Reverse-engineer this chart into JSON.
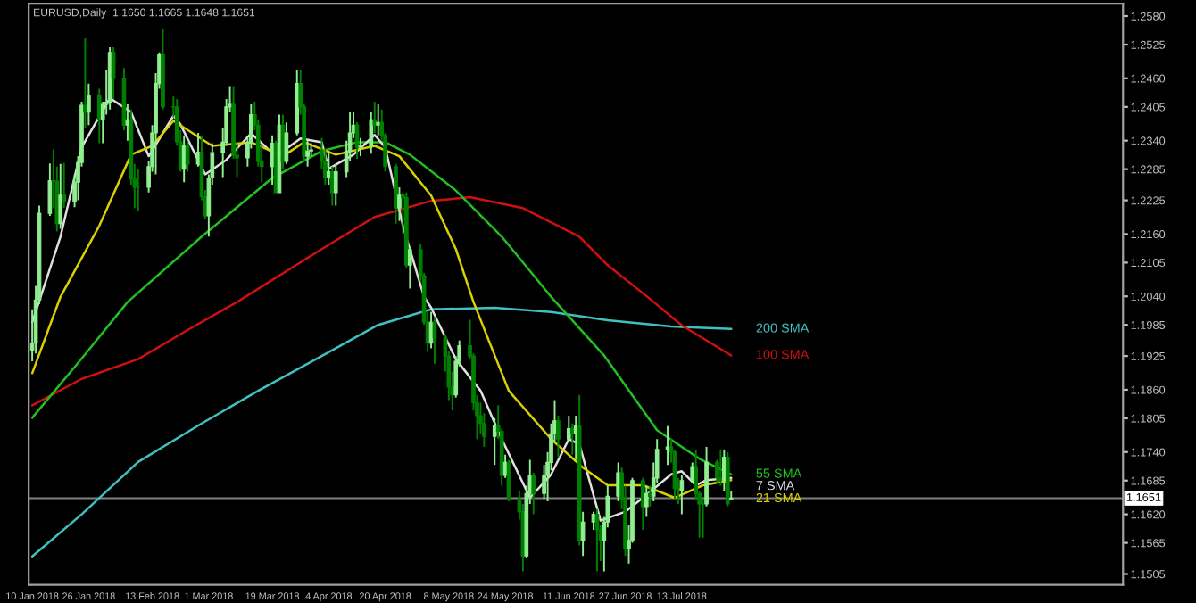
{
  "chart_data": {
    "type": "candlestick",
    "title": "EURUSD,Daily  1.1650 1.1665 1.1648 1.1651",
    "x": [
      "2018-01-10",
      "2018-01-11",
      "2018-01-12",
      "2018-01-15",
      "2018-01-16",
      "2018-01-17",
      "2018-01-18",
      "2018-01-19",
      "2018-01-22",
      "2018-01-23",
      "2018-01-24",
      "2018-01-25",
      "2018-01-26",
      "2018-01-29",
      "2018-01-30",
      "2018-01-31",
      "2018-02-01",
      "2018-02-02",
      "2018-02-05",
      "2018-02-06",
      "2018-02-07",
      "2018-02-08",
      "2018-02-09",
      "2018-02-12",
      "2018-02-13",
      "2018-02-14",
      "2018-02-15",
      "2018-02-16",
      "2018-02-19",
      "2018-02-20",
      "2018-02-21",
      "2018-02-22",
      "2018-02-23",
      "2018-02-26",
      "2018-02-27",
      "2018-02-28",
      "2018-03-01",
      "2018-03-02",
      "2018-03-05",
      "2018-03-06",
      "2018-03-07",
      "2018-03-08",
      "2018-03-09",
      "2018-03-12",
      "2018-03-13",
      "2018-03-14",
      "2018-03-15",
      "2018-03-16",
      "2018-03-19",
      "2018-03-20",
      "2018-03-21",
      "2018-03-22",
      "2018-03-23",
      "2018-03-26",
      "2018-03-27",
      "2018-03-28",
      "2018-03-29",
      "2018-03-30",
      "2018-04-02",
      "2018-04-03",
      "2018-04-04",
      "2018-04-05",
      "2018-04-06",
      "2018-04-09",
      "2018-04-10",
      "2018-04-11",
      "2018-04-12",
      "2018-04-13",
      "2018-04-16",
      "2018-04-17",
      "2018-04-18",
      "2018-04-19",
      "2018-04-20",
      "2018-04-23",
      "2018-04-24",
      "2018-04-25",
      "2018-04-26",
      "2018-04-27",
      "2018-04-30",
      "2018-05-01",
      "2018-05-02",
      "2018-05-03",
      "2018-05-04",
      "2018-05-07",
      "2018-05-08",
      "2018-05-09",
      "2018-05-10",
      "2018-05-11",
      "2018-05-14",
      "2018-05-15",
      "2018-05-16",
      "2018-05-17",
      "2018-05-18",
      "2018-05-21",
      "2018-05-22",
      "2018-05-23",
      "2018-05-24",
      "2018-05-25",
      "2018-05-28",
      "2018-05-29",
      "2018-05-30",
      "2018-05-31",
      "2018-06-01",
      "2018-06-04",
      "2018-06-05",
      "2018-06-06",
      "2018-06-07",
      "2018-06-08",
      "2018-06-11",
      "2018-06-12",
      "2018-06-13",
      "2018-06-14",
      "2018-06-15",
      "2018-06-18",
      "2018-06-19",
      "2018-06-20",
      "2018-06-21",
      "2018-06-22",
      "2018-06-25",
      "2018-06-26",
      "2018-06-27",
      "2018-06-28",
      "2018-06-29",
      "2018-07-02",
      "2018-07-03",
      "2018-07-04",
      "2018-07-05",
      "2018-07-06",
      "2018-07-09",
      "2018-07-10",
      "2018-07-11",
      "2018-07-12",
      "2018-07-13",
      "2018-07-16",
      "2018-07-17",
      "2018-07-18",
      "2018-07-19",
      "2018-07-20",
      "2018-07-23",
      "2018-07-24",
      "2018-07-25",
      "2018-07-26",
      "2018-07-27"
    ],
    "ohlc": [
      [
        1.1935,
        1.2015,
        1.1915,
        1.195
      ],
      [
        1.195,
        1.206,
        1.193,
        1.2033
      ],
      [
        1.2033,
        1.2215,
        1.2025,
        1.22
      ],
      [
        1.22,
        1.2296,
        1.2195,
        1.2263
      ],
      [
        1.2263,
        1.2323,
        1.221,
        1.2262
      ],
      [
        1.2262,
        1.229,
        1.2165,
        1.218
      ],
      [
        1.218,
        1.2295,
        1.217,
        1.2235
      ],
      [
        1.2235,
        1.2297,
        1.221,
        1.2222
      ],
      [
        1.2222,
        1.2275,
        1.2212,
        1.226
      ],
      [
        1.226,
        1.231,
        1.2225,
        1.2298
      ],
      [
        1.2298,
        1.2415,
        1.229,
        1.2408
      ],
      [
        1.2408,
        1.2537,
        1.2365,
        1.2395
      ],
      [
        1.2395,
        1.245,
        1.237,
        1.2427
      ],
      [
        1.2427,
        1.244,
        1.2335,
        1.238
      ],
      [
        1.238,
        1.2415,
        1.2335,
        1.241
      ],
      [
        1.241,
        1.2475,
        1.239,
        1.2414
      ],
      [
        1.2414,
        1.252,
        1.24,
        1.251
      ],
      [
        1.251,
        1.252,
        1.242,
        1.246
      ],
      [
        1.246,
        1.248,
        1.236,
        1.237
      ],
      [
        1.237,
        1.241,
        1.234,
        1.238
      ],
      [
        1.238,
        1.24,
        1.2255,
        1.2266
      ],
      [
        1.2266,
        1.2295,
        1.221,
        1.225
      ],
      [
        1.225,
        1.2285,
        1.2205,
        1.225
      ],
      [
        1.225,
        1.23,
        1.224,
        1.229
      ],
      [
        1.229,
        1.237,
        1.228,
        1.2355
      ],
      [
        1.2355,
        1.247,
        1.2275,
        1.245
      ],
      [
        1.245,
        1.251,
        1.244,
        1.2505
      ],
      [
        1.2505,
        1.2555,
        1.24,
        1.2405
      ],
      [
        1.2405,
        1.2425,
        1.2385,
        1.2405
      ],
      [
        1.2405,
        1.242,
        1.233,
        1.2338
      ],
      [
        1.2338,
        1.236,
        1.228,
        1.2285
      ],
      [
        1.2285,
        1.235,
        1.226,
        1.233
      ],
      [
        1.233,
        1.234,
        1.228,
        1.2295
      ],
      [
        1.2295,
        1.2355,
        1.229,
        1.2318
      ],
      [
        1.2318,
        1.235,
        1.2225,
        1.2232
      ],
      [
        1.2232,
        1.2245,
        1.219,
        1.2195
      ],
      [
        1.2195,
        1.2275,
        1.2155,
        1.2268
      ],
      [
        1.2268,
        1.2335,
        1.2255,
        1.2317
      ],
      [
        1.2317,
        1.2365,
        1.227,
        1.2337
      ],
      [
        1.2337,
        1.242,
        1.233,
        1.2405
      ],
      [
        1.2405,
        1.2445,
        1.2395,
        1.241
      ],
      [
        1.241,
        1.2445,
        1.2305,
        1.2312
      ],
      [
        1.2312,
        1.2335,
        1.227,
        1.2307
      ],
      [
        1.2307,
        1.2345,
        1.229,
        1.2336
      ],
      [
        1.2336,
        1.241,
        1.2325,
        1.239
      ],
      [
        1.239,
        1.2415,
        1.236,
        1.237
      ],
      [
        1.237,
        1.238,
        1.229,
        1.23
      ],
      [
        1.23,
        1.233,
        1.226,
        1.229
      ],
      [
        1.229,
        1.235,
        1.2255,
        1.2335
      ],
      [
        1.2335,
        1.234,
        1.224,
        1.224
      ],
      [
        1.224,
        1.239,
        1.224,
        1.237
      ],
      [
        1.237,
        1.239,
        1.2285,
        1.23
      ],
      [
        1.23,
        1.2375,
        1.2295,
        1.2355
      ],
      [
        1.2355,
        1.2475,
        1.235,
        1.245
      ],
      [
        1.245,
        1.2475,
        1.239,
        1.2405
      ],
      [
        1.2405,
        1.241,
        1.23,
        1.231
      ],
      [
        1.231,
        1.234,
        1.229,
        1.232
      ],
      [
        1.232,
        1.2335,
        1.231,
        1.2322
      ],
      [
        1.2322,
        1.2345,
        1.2285,
        1.23
      ],
      [
        1.23,
        1.2325,
        1.2255,
        1.227
      ],
      [
        1.227,
        1.232,
        1.2255,
        1.228
      ],
      [
        1.228,
        1.229,
        1.2215,
        1.224
      ],
      [
        1.224,
        1.2295,
        1.2215,
        1.228
      ],
      [
        1.228,
        1.234,
        1.227,
        1.232
      ],
      [
        1.232,
        1.2395,
        1.23,
        1.2355
      ],
      [
        1.2355,
        1.2395,
        1.2345,
        1.237
      ],
      [
        1.237,
        1.2375,
        1.2305,
        1.2327
      ],
      [
        1.2327,
        1.2345,
        1.231,
        1.233
      ],
      [
        1.233,
        1.2395,
        1.2315,
        1.238
      ],
      [
        1.238,
        1.2415,
        1.2355,
        1.237
      ],
      [
        1.237,
        1.241,
        1.235,
        1.2375
      ],
      [
        1.2375,
        1.24,
        1.234,
        1.235
      ],
      [
        1.235,
        1.2355,
        1.228,
        1.229
      ],
      [
        1.229,
        1.2295,
        1.218,
        1.221
      ],
      [
        1.221,
        1.225,
        1.2185,
        1.2235
      ],
      [
        1.2235,
        1.224,
        1.216,
        1.223
      ],
      [
        1.223,
        1.224,
        1.2095,
        1.21
      ],
      [
        1.21,
        1.2135,
        1.2055,
        1.213
      ],
      [
        1.213,
        1.214,
        1.207,
        1.208
      ],
      [
        1.208,
        1.2085,
        1.1985,
        1.199
      ],
      [
        1.199,
        1.201,
        1.1935,
        1.195
      ],
      [
        1.195,
        1.201,
        1.194,
        1.199
      ],
      [
        1.199,
        1.2,
        1.191,
        1.196
      ],
      [
        1.196,
        1.1965,
        1.1895,
        1.1925
      ],
      [
        1.1925,
        1.1935,
        1.184,
        1.1865
      ],
      [
        1.1865,
        1.1895,
        1.182,
        1.185
      ],
      [
        1.185,
        1.1925,
        1.1845,
        1.1915
      ],
      [
        1.1915,
        1.1955,
        1.1905,
        1.1945
      ],
      [
        1.1945,
        1.1995,
        1.192,
        1.1925
      ],
      [
        1.1925,
        1.193,
        1.182,
        1.1835
      ],
      [
        1.1835,
        1.185,
        1.1765,
        1.181
      ],
      [
        1.181,
        1.1835,
        1.1775,
        1.1795
      ],
      [
        1.1795,
        1.1815,
        1.175,
        1.177
      ],
      [
        1.177,
        1.1805,
        1.1715,
        1.179
      ],
      [
        1.179,
        1.183,
        1.1765,
        1.178
      ],
      [
        1.178,
        1.1785,
        1.1675,
        1.1695
      ],
      [
        1.1695,
        1.1735,
        1.169,
        1.172
      ],
      [
        1.172,
        1.1725,
        1.1645,
        1.165
      ],
      [
        1.165,
        1.1665,
        1.161,
        1.1625
      ],
      [
        1.1625,
        1.164,
        1.151,
        1.154
      ],
      [
        1.154,
        1.1675,
        1.1535,
        1.166
      ],
      [
        1.166,
        1.1725,
        1.164,
        1.1695
      ],
      [
        1.1695,
        1.17,
        1.162,
        1.166
      ],
      [
        1.166,
        1.1715,
        1.165,
        1.1695
      ],
      [
        1.1695,
        1.174,
        1.1645,
        1.172
      ],
      [
        1.172,
        1.1795,
        1.1705,
        1.1775
      ],
      [
        1.1775,
        1.184,
        1.176,
        1.18
      ],
      [
        1.18,
        1.181,
        1.173,
        1.1765
      ],
      [
        1.1765,
        1.181,
        1.176,
        1.1785
      ],
      [
        1.1785,
        1.1795,
        1.1735,
        1.1775
      ],
      [
        1.1775,
        1.181,
        1.1725,
        1.179
      ],
      [
        1.179,
        1.185,
        1.156,
        1.157
      ],
      [
        1.157,
        1.1625,
        1.154,
        1.1605
      ],
      [
        1.1605,
        1.1625,
        1.159,
        1.162
      ],
      [
        1.162,
        1.163,
        1.151,
        1.159
      ],
      [
        1.159,
        1.16,
        1.153,
        1.157
      ],
      [
        1.157,
        1.1615,
        1.151,
        1.1605
      ],
      [
        1.1605,
        1.1675,
        1.1595,
        1.1655
      ],
      [
        1.1655,
        1.172,
        1.1645,
        1.17
      ],
      [
        1.17,
        1.171,
        1.163,
        1.165
      ],
      [
        1.165,
        1.1675,
        1.154,
        1.1555
      ],
      [
        1.1555,
        1.16,
        1.1525,
        1.157
      ],
      [
        1.157,
        1.169,
        1.1565,
        1.1685
      ],
      [
        1.1685,
        1.169,
        1.159,
        1.1635
      ],
      [
        1.1635,
        1.1675,
        1.1615,
        1.166
      ],
      [
        1.166,
        1.1675,
        1.1635,
        1.1655
      ],
      [
        1.1655,
        1.172,
        1.1645,
        1.169
      ],
      [
        1.169,
        1.1765,
        1.168,
        1.1745
      ],
      [
        1.1745,
        1.179,
        1.1715,
        1.175
      ],
      [
        1.175,
        1.1765,
        1.172,
        1.174
      ],
      [
        1.174,
        1.1745,
        1.165,
        1.167
      ],
      [
        1.167,
        1.169,
        1.164,
        1.1665
      ],
      [
        1.1665,
        1.1695,
        1.162,
        1.1685
      ],
      [
        1.1685,
        1.172,
        1.168,
        1.1712
      ],
      [
        1.1712,
        1.1745,
        1.165,
        1.166
      ],
      [
        1.166,
        1.1665,
        1.1575,
        1.164
      ],
      [
        1.164,
        1.165,
        1.1575,
        1.164
      ],
      [
        1.164,
        1.175,
        1.1635,
        1.172
      ],
      [
        1.172,
        1.1725,
        1.168,
        1.169
      ],
      [
        1.169,
        1.1745,
        1.1675,
        1.1685
      ],
      [
        1.1685,
        1.1745,
        1.1665,
        1.173
      ],
      [
        1.173,
        1.174,
        1.1635,
        1.164
      ],
      [
        1.165,
        1.1665,
        1.1648,
        1.1651
      ]
    ],
    "colors": [
      "#90ee90",
      "#90ee90",
      "#90ee90",
      "#90ee90",
      "#008000",
      "#008000",
      "#90ee90",
      "#008000",
      "#90ee90",
      "#90ee90",
      "#90ee90",
      "#008000",
      "#90ee90",
      "#008000",
      "#90ee90",
      "#90ee90",
      "#90ee90",
      "#008000",
      "#008000",
      "#90ee90",
      "#008000",
      "#008000",
      "#008000",
      "#90ee90",
      "#90ee90",
      "#90ee90",
      "#90ee90",
      "#008000",
      "#008000",
      "#008000",
      "#008000",
      "#90ee90",
      "#008000",
      "#90ee90",
      "#008000",
      "#008000",
      "#90ee90",
      "#90ee90",
      "#90ee90",
      "#90ee90",
      "#90ee90",
      "#008000",
      "#008000",
      "#90ee90",
      "#90ee90",
      "#008000",
      "#008000",
      "#008000",
      "#90ee90",
      "#008000",
      "#90ee90",
      "#008000",
      "#90ee90",
      "#90ee90",
      "#008000",
      "#008000",
      "#90ee90",
      "#90ee90",
      "#008000",
      "#008000",
      "#90ee90",
      "#008000",
      "#90ee90",
      "#90ee90",
      "#90ee90",
      "#90ee90",
      "#008000",
      "#90ee90",
      "#90ee90",
      "#008000",
      "#90ee90",
      "#008000",
      "#008000",
      "#008000",
      "#90ee90",
      "#008000",
      "#008000",
      "#90ee90",
      "#008000",
      "#008000",
      "#008000",
      "#90ee90",
      "#008000",
      "#008000",
      "#008000",
      "#008000",
      "#90ee90",
      "#90ee90",
      "#008000",
      "#008000",
      "#008000",
      "#008000",
      "#008000",
      "#90ee90",
      "#008000",
      "#008000",
      "#90ee90",
      "#008000",
      "#008000",
      "#008000",
      "#90ee90",
      "#90ee90",
      "#008000",
      "#90ee90",
      "#90ee90",
      "#90ee90",
      "#90ee90",
      "#008000",
      "#90ee90",
      "#008000",
      "#90ee90",
      "#008000",
      "#90ee90",
      "#90ee90",
      "#008000",
      "#008000",
      "#90ee90",
      "#90ee90",
      "#90ee90",
      "#008000",
      "#008000",
      "#90ee90",
      "#90ee90",
      "#008000",
      "#90ee90",
      "#008000",
      "#90ee90",
      "#90ee90",
      "#90ee90",
      "#008000",
      "#008000",
      "#008000",
      "#90ee90",
      "#90ee90",
      "#008000",
      "#008000",
      "#008000",
      "#90ee90",
      "#008000",
      "#008000",
      "#90ee90",
      "#008000",
      "#90ee90"
    ],
    "series": [
      {
        "type": "line",
        "name": "200 SMA",
        "color": "#40c0c0",
        "x": [
          "2018-01-10",
          "2018-01-24",
          "2018-02-09",
          "2018-02-27",
          "2018-03-15",
          "2018-04-02",
          "2018-04-18",
          "2018-05-03",
          "2018-05-21",
          "2018-06-06",
          "2018-06-22",
          "2018-07-10",
          "2018-07-27"
        ],
        "values": [
          1.1539,
          1.162,
          1.1721,
          1.1795,
          1.1858,
          1.1925,
          1.1985,
          1.2015,
          1.2018,
          1.201,
          1.1994,
          1.1982,
          1.1977
        ]
      },
      {
        "type": "line",
        "name": "100 SMA",
        "color": "#d01010",
        "x": [
          "2018-01-10",
          "2018-01-24",
          "2018-02-09",
          "2018-02-23",
          "2018-03-09",
          "2018-04-02",
          "2018-04-17",
          "2018-05-03",
          "2018-05-14",
          "2018-05-29",
          "2018-06-14",
          "2018-06-22",
          "2018-07-04",
          "2018-07-13",
          "2018-07-27"
        ],
        "values": [
          1.183,
          1.1881,
          1.1919,
          1.1975,
          1.2029,
          1.2131,
          1.2193,
          1.2224,
          1.2231,
          1.221,
          1.2155,
          1.21,
          1.2035,
          1.1984,
          1.1926
        ]
      },
      {
        "type": "line",
        "name": "55 SMA",
        "color": "#20c020",
        "x": [
          "2018-01-10",
          "2018-01-24",
          "2018-02-06",
          "2018-02-27",
          "2018-03-19",
          "2018-04-02",
          "2018-04-12",
          "2018-04-20",
          "2018-04-27",
          "2018-05-10",
          "2018-05-23",
          "2018-06-06",
          "2018-06-21",
          "2018-07-06",
          "2018-07-18",
          "2018-07-27"
        ],
        "values": [
          1.1806,
          1.192,
          1.2029,
          1.2155,
          1.2268,
          1.232,
          1.2337,
          1.2337,
          1.2313,
          1.2244,
          1.2155,
          1.2039,
          1.1926,
          1.1782,
          1.1727,
          1.1697
        ]
      },
      {
        "type": "line",
        "name": "7 SMA",
        "color": "#e0e0e0",
        "x": [
          "2018-01-10",
          "2018-01-18",
          "2018-01-24",
          "2018-02-01",
          "2018-02-07",
          "2018-02-12",
          "2018-02-19",
          "2018-02-21",
          "2018-02-28",
          "2018-03-06",
          "2018-03-13",
          "2018-03-20",
          "2018-03-27",
          "2018-04-02",
          "2018-04-04",
          "2018-04-11",
          "2018-04-17",
          "2018-04-20",
          "2018-04-25",
          "2018-05-01",
          "2018-05-03",
          "2018-05-10",
          "2018-05-17",
          "2018-05-23",
          "2018-05-31",
          "2018-06-06",
          "2018-06-11",
          "2018-06-14",
          "2018-06-20",
          "2018-06-27",
          "2018-07-02",
          "2018-07-10",
          "2018-07-13",
          "2018-07-17",
          "2018-07-20",
          "2018-07-27"
        ],
        "values": [
          1.199,
          1.2155,
          1.2327,
          1.2422,
          1.2395,
          1.231,
          1.2388,
          1.2371,
          1.2275,
          1.2303,
          1.2354,
          1.231,
          1.2344,
          1.2337,
          1.2286,
          1.2313,
          1.2351,
          1.2327,
          1.2176,
          1.2039,
          1.2018,
          1.1919,
          1.1858,
          1.1765,
          1.1652,
          1.1697,
          1.1765,
          1.1755,
          1.1608,
          1.1625,
          1.1652,
          1.1697,
          1.1703,
          1.1676,
          1.1686,
          1.169
        ]
      },
      {
        "type": "line",
        "name": "21 SMA",
        "color": "#d8d000",
        "x": [
          "2018-01-10",
          "2018-01-18",
          "2018-01-29",
          "2018-02-07",
          "2018-02-13",
          "2018-02-19",
          "2018-03-02",
          "2018-03-13",
          "2018-03-22",
          "2018-03-28",
          "2018-04-06",
          "2018-04-17",
          "2018-04-24",
          "2018-05-03",
          "2018-05-10",
          "2018-05-15",
          "2018-05-25",
          "2018-06-06",
          "2018-06-15",
          "2018-06-22",
          "2018-07-02",
          "2018-07-11",
          "2018-07-19",
          "2018-07-27"
        ],
        "values": [
          1.1892,
          1.2039,
          1.2176,
          1.2313,
          1.233,
          1.2378,
          1.233,
          1.2337,
          1.231,
          1.2337,
          1.2313,
          1.233,
          1.231,
          1.2234,
          1.2131,
          1.2029,
          1.1858,
          1.1765,
          1.171,
          1.1676,
          1.1676,
          1.1652,
          1.1676,
          1.1686
        ]
      }
    ],
    "ref_lines": [
      {
        "axis": "y",
        "value": 1.1651,
        "label": "1.1651",
        "color": "#808080"
      }
    ],
    "xlim": [
      "2018-01-09",
      "2018-11-15"
    ],
    "xticks": [
      {
        "value": "2018-01-10",
        "label": "10 Jan 2018"
      },
      {
        "value": "2018-01-26",
        "label": "26 Jan 2018"
      },
      {
        "value": "2018-02-13",
        "label": "13 Feb 2018"
      },
      {
        "value": "2018-03-01",
        "label": "1 Mar 2018"
      },
      {
        "value": "2018-03-19",
        "label": "19 Mar 2018"
      },
      {
        "value": "2018-04-04",
        "label": "4 Apr 2018"
      },
      {
        "value": "2018-04-20",
        "label": "20 Apr 2018"
      },
      {
        "value": "2018-05-08",
        "label": "8 May 2018"
      },
      {
        "value": "2018-05-24",
        "label": "24 May 2018"
      },
      {
        "value": "2018-06-11",
        "label": "11 Jun 2018"
      },
      {
        "value": "2018-06-27",
        "label": "27 Jun 2018"
      },
      {
        "value": "2018-07-13",
        "label": "13 Jul 2018"
      }
    ],
    "ylim": [
      1.1484,
      1.2604
    ],
    "yticks": [
      {
        "value": 1.258,
        "label": "1.2580"
      },
      1.2525,
      {
        "value": 1.246,
        "label": "1.2460"
      },
      1.2405,
      {
        "value": 1.234,
        "label": "1.2340"
      },
      1.2285,
      1.2225,
      {
        "value": 1.216,
        "label": "1.2160"
      },
      1.2105,
      {
        "value": 1.204,
        "label": "1.2040"
      },
      1.1985,
      1.1925,
      {
        "value": 1.186,
        "label": "1.1860"
      },
      1.1805,
      {
        "value": 1.174,
        "label": "1.1740"
      },
      1.1685,
      {
        "value": 1.162,
        "label": "1.1620"
      },
      1.1565,
      1.1505
    ],
    "grid": false,
    "legend": false
  }
}
